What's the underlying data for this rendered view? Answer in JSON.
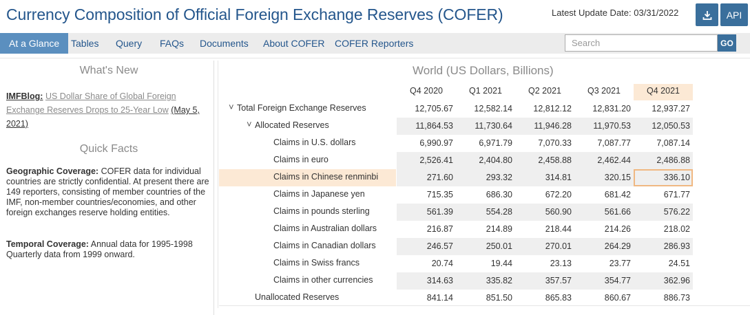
{
  "header": {
    "title": "Currency Composition of Official Foreign Exchange Reserves (COFER)",
    "update_label": "Latest Update Date: 03/31/2022",
    "download_icon": "download-icon",
    "api_label": "API"
  },
  "nav": {
    "items": [
      "At a Glance",
      "Tables",
      "Query",
      "FAQs",
      "Documents",
      "About COFER",
      "COFER Reporters"
    ],
    "search_placeholder": "Search",
    "go_label": "GO"
  },
  "whats_new": {
    "heading": "What's New",
    "blog_label": "IMFBlog:",
    "blog_link": "US Dollar Share of Global Foreign Exchange Reserves Drops to 25-Year Low",
    "blog_date": "(May 5, 2021)"
  },
  "quick_facts": {
    "heading": "Quick Facts",
    "geo_label": "Geographic Coverage:",
    "geo_text": "COFER data for individual countries are strictly confidential. At present there are 149 reporters, consisting of member countries of the IMF, non-member countries/economies, and other foreign exchanges reserve holding entities.",
    "temporal_label": "Temporal Coverage:",
    "temporal_text": "Annual data for 1995-1998 Quarterly data from 1999 onward."
  },
  "table": {
    "title": "World (US Dollars, Billions)",
    "columns": [
      "Q4 2020",
      "Q1 2021",
      "Q2 2021",
      "Q3 2021",
      "Q4 2021"
    ],
    "highlight_color": "#fce9d5",
    "rows": [
      {
        "label": "Total Foreign Exchange Reserves",
        "values": [
          "12,705.67",
          "12,582.14",
          "12,812.12",
          "12,831.20",
          "12,937.27"
        ]
      },
      {
        "label": "Allocated Reserves",
        "values": [
          "11,864.53",
          "11,730.64",
          "11,946.28",
          "11,970.53",
          "12,050.53"
        ]
      },
      {
        "label": "Claims in U.S. dollars",
        "values": [
          "6,990.97",
          "6,971.79",
          "7,070.33",
          "7,087.77",
          "7,087.14"
        ]
      },
      {
        "label": "Claims in euro",
        "values": [
          "2,526.41",
          "2,404.80",
          "2,458.88",
          "2,462.44",
          "2,486.88"
        ]
      },
      {
        "label": "Claims in Chinese renminbi",
        "values": [
          "271.60",
          "293.32",
          "314.81",
          "320.15",
          "336.10"
        ]
      },
      {
        "label": "Claims in Japanese yen",
        "values": [
          "715.35",
          "686.30",
          "672.20",
          "681.42",
          "671.77"
        ]
      },
      {
        "label": "Claims in pounds sterling",
        "values": [
          "561.39",
          "554.28",
          "560.90",
          "561.66",
          "576.22"
        ]
      },
      {
        "label": "Claims in Australian dollars",
        "values": [
          "216.87",
          "214.89",
          "218.44",
          "214.26",
          "218.02"
        ]
      },
      {
        "label": "Claims in Canadian dollars",
        "values": [
          "246.57",
          "250.01",
          "270.01",
          "264.29",
          "286.93"
        ]
      },
      {
        "label": "Claims in Swiss francs",
        "values": [
          "20.74",
          "19.44",
          "23.13",
          "23.77",
          "24.51"
        ]
      },
      {
        "label": "Claims in other currencies",
        "values": [
          "314.63",
          "335.82",
          "357.57",
          "354.77",
          "362.96"
        ]
      },
      {
        "label": "Unallocated Reserves",
        "values": [
          "841.14",
          "851.50",
          "865.83",
          "860.67",
          "886.73"
        ]
      }
    ]
  }
}
